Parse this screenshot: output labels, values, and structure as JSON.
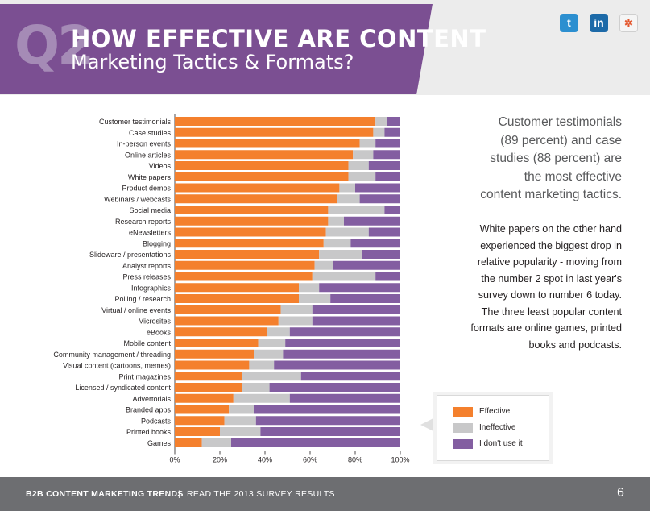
{
  "header": {
    "badge": "Q2",
    "title": "HOW EFFECTIVE ARE CONTENT",
    "subtitle": "Marketing Tactics & Formats?"
  },
  "social": [
    {
      "name": "twitter",
      "glyph": "t"
    },
    {
      "name": "linkedin",
      "glyph": "in"
    },
    {
      "name": "share",
      "glyph": "✲"
    }
  ],
  "sidebar": {
    "highlight_lines": [
      "Customer testimonials",
      "(89 percent) and case",
      "studies (88 percent) are",
      "the most effective",
      "content marketing tactics."
    ],
    "body_lines": [
      "White papers on the other hand",
      "experienced the biggest drop in",
      "relative popularity - moving from",
      "the number 2 spot in last year's",
      "survey down to number 6 today.",
      "The three least popular content",
      "formats are online games, printed",
      "books and podcasts."
    ]
  },
  "legend": [
    "Effective",
    "Ineffective",
    "I don't use it"
  ],
  "colors": {
    "effective": "#f4802d",
    "ineffective": "#c8c8c9",
    "unused": "#835ea1",
    "banner": "#7b4f92"
  },
  "chart_data": {
    "type": "bar",
    "orientation": "horizontal",
    "stacked": true,
    "categories": [
      "Customer testimonials",
      "Case studies",
      "In-person events",
      "Online articles",
      "Videos",
      "White papers",
      "Product demos",
      "Webinars / webcasts",
      "Social media",
      "Research reports",
      "eNewsletters",
      "Blogging",
      "Slideware / presentations",
      "Analyst reports",
      "Press releases",
      "Infographics",
      "Polling / research",
      "Virtual / online events",
      "Microsites",
      "eBooks",
      "Mobile content",
      "Community management / threading",
      "Visual content (cartoons, memes)",
      "Print magazines",
      "Licensed / syndicated content",
      "Advertorials",
      "Branded apps",
      "Podcasts",
      "Printed books",
      "Games"
    ],
    "series": [
      {
        "name": "Effective",
        "values": [
          89,
          88,
          82,
          79,
          77,
          77,
          73,
          72,
          68,
          68,
          67,
          66,
          64,
          62,
          61,
          55,
          55,
          47,
          46,
          41,
          37,
          35,
          33,
          30,
          30,
          26,
          24,
          22,
          20,
          12
        ]
      },
      {
        "name": "Ineffective",
        "values": [
          5,
          5,
          7,
          9,
          9,
          12,
          7,
          10,
          25,
          7,
          19,
          12,
          19,
          8,
          28,
          9,
          14,
          14,
          15,
          10,
          12,
          13,
          11,
          26,
          12,
          25,
          11,
          14,
          18,
          13
        ]
      },
      {
        "name": "I don't use it",
        "values": [
          6,
          7,
          11,
          12,
          14,
          11,
          20,
          18,
          7,
          25,
          14,
          22,
          17,
          30,
          11,
          36,
          31,
          39,
          39,
          49,
          51,
          52,
          56,
          44,
          58,
          49,
          65,
          64,
          62,
          75
        ]
      }
    ],
    "xlim": [
      0,
      100
    ],
    "xticks": [
      "0%",
      "20%",
      "40%",
      "60%",
      "80%",
      "100%"
    ],
    "grid": true
  },
  "footer": {
    "title": "B2B CONTENT MARKETING TRENDS",
    "separator": "|",
    "link": "READ THE 2013 SURVEY RESULTS",
    "page": "6"
  }
}
